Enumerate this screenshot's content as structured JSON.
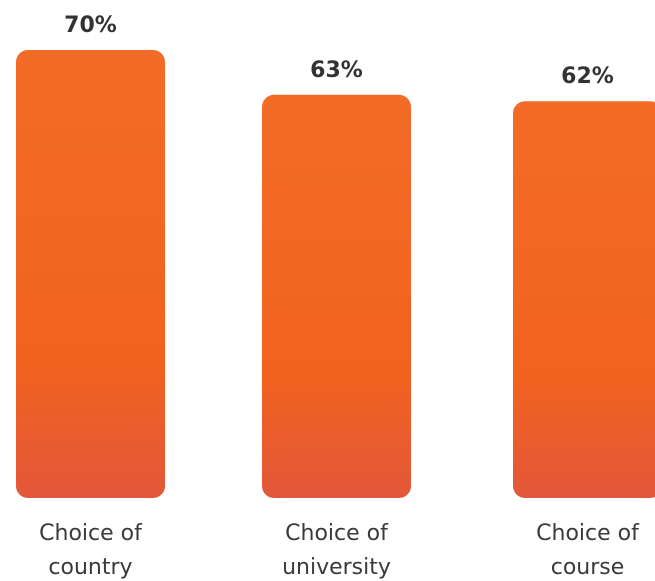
{
  "chart_data": {
    "type": "bar",
    "categories": [
      [
        "Choice of",
        "country"
      ],
      [
        "Choice of",
        "university"
      ],
      [
        "Choice of",
        "course"
      ]
    ],
    "values": [
      70,
      63,
      62
    ],
    "value_labels": [
      "70%",
      "63%",
      "62%"
    ],
    "title": "",
    "xlabel": "",
    "ylabel": "",
    "ylim": [
      0,
      70
    ],
    "grid": false,
    "legend": "none",
    "bar_gradient": [
      "#f26c27",
      "#f2621f",
      "#e2573a"
    ]
  }
}
